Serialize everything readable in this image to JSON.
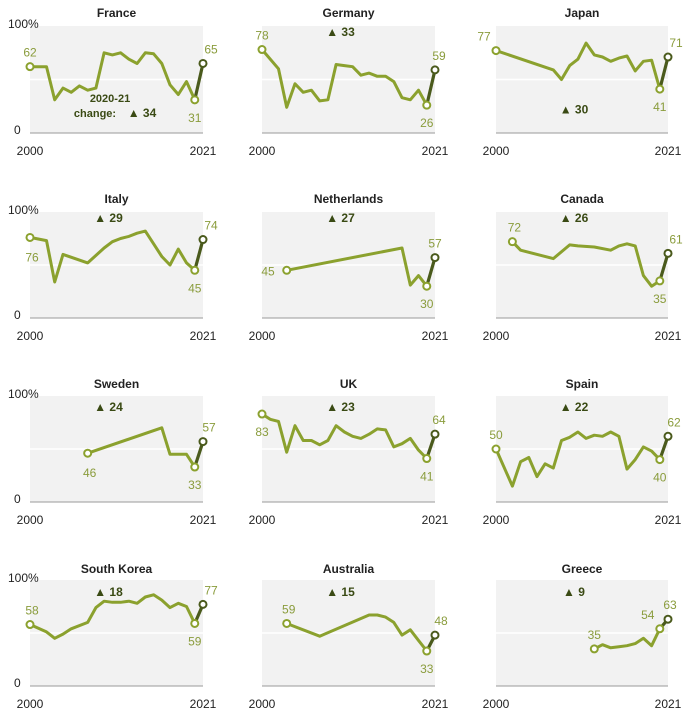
{
  "colors": {
    "line": "#8ba12e",
    "change_segment": "#4a5a1c",
    "panel_bg": "#f2f2f2",
    "axis": "#999999",
    "label": "#8a9c3c",
    "change_text": "#3a4a14"
  },
  "chart_data": [
    {
      "type": "line",
      "title": "France",
      "x": [
        2000,
        2002,
        2003,
        2004,
        2005,
        2006,
        2007,
        2008,
        2009,
        2010,
        2011,
        2012,
        2013,
        2014,
        2015,
        2016,
        2017,
        2018,
        2019,
        2020,
        2021
      ],
      "values": [
        62,
        62,
        31,
        42,
        38,
        44,
        40,
        42,
        75,
        73,
        75,
        69,
        65,
        75,
        74,
        65,
        45,
        36,
        48,
        31,
        65
      ],
      "start_label": "62",
      "end_label": "65",
      "low_label": "31",
      "change": "▲ 34",
      "change_note_line1": "2020-21",
      "change_note_line2": "change:",
      "x_start_label": "2000",
      "x_end_label": "2021",
      "y_top_label": "100%",
      "y_bottom_label": "0",
      "ylim": [
        0,
        100
      ]
    },
    {
      "type": "line",
      "title": "Germany",
      "x": [
        2000,
        2002,
        2003,
        2004,
        2005,
        2006,
        2007,
        2008,
        2009,
        2010,
        2011,
        2012,
        2013,
        2014,
        2015,
        2016,
        2017,
        2018,
        2019,
        2020,
        2021
      ],
      "values": [
        78,
        60,
        24,
        46,
        38,
        40,
        30,
        31,
        64,
        63,
        62,
        54,
        56,
        53,
        53,
        48,
        33,
        31,
        40,
        26,
        59
      ],
      "start_label": "78",
      "end_label": "59",
      "low_label": "26",
      "change": "▲ 33",
      "x_start_label": "2000",
      "x_end_label": "2021",
      "ylim": [
        0,
        100
      ]
    },
    {
      "type": "line",
      "title": "Japan",
      "x": [
        2000,
        2007,
        2008,
        2009,
        2010,
        2011,
        2012,
        2013,
        2014,
        2015,
        2016,
        2017,
        2018,
        2019,
        2020,
        2021
      ],
      "values": [
        77,
        59,
        50,
        63,
        69,
        84,
        73,
        71,
        67,
        70,
        72,
        58,
        67,
        68,
        41,
        71
      ],
      "start_label": "77",
      "end_label": "71",
      "low_label": "41",
      "change": "▲ 30",
      "x_start_label": "2000",
      "x_end_label": "2021",
      "ylim": [
        0,
        100
      ]
    },
    {
      "type": "line",
      "title": "Italy",
      "x": [
        2000,
        2002,
        2003,
        2004,
        2007,
        2009,
        2010,
        2011,
        2012,
        2013,
        2014,
        2015,
        2016,
        2017,
        2018,
        2019,
        2020,
        2021
      ],
      "values": [
        76,
        73,
        34,
        60,
        52,
        66,
        72,
        75,
        77,
        80,
        82,
        70,
        58,
        50,
        65,
        52,
        45,
        74
      ],
      "start_label": "76",
      "end_label": "74",
      "low_label": "45",
      "change": "▲ 29",
      "x_start_label": "2000",
      "x_end_label": "2021",
      "y_top_label": "100%",
      "y_bottom_label": "0",
      "ylim": [
        0,
        100
      ]
    },
    {
      "type": "line",
      "title": "Netherlands",
      "x": [
        2003,
        2017,
        2018,
        2019,
        2020,
        2021
      ],
      "values": [
        45,
        66,
        31,
        40,
        30,
        57
      ],
      "start_label": "45",
      "end_label": "57",
      "low_label": "30",
      "change": "▲ 27",
      "x_start_label": "2000",
      "x_end_label": "2021",
      "ylim": [
        0,
        100
      ]
    },
    {
      "type": "line",
      "title": "Canada",
      "x": [
        2002,
        2003,
        2007,
        2009,
        2010,
        2012,
        2014,
        2015,
        2016,
        2017,
        2018,
        2019,
        2020,
        2021
      ],
      "values": [
        72,
        64,
        56,
        69,
        68,
        67,
        64,
        68,
        70,
        68,
        40,
        30,
        35,
        61
      ],
      "start_label": "72",
      "end_label": "61",
      "low_label": "35",
      "change": "▲ 26",
      "x_start_label": "2000",
      "x_end_label": "2021",
      "ylim": [
        0,
        100
      ]
    },
    {
      "type": "line",
      "title": "Sweden",
      "x": [
        2007,
        2016,
        2017,
        2018,
        2019,
        2020,
        2021
      ],
      "values": [
        46,
        70,
        45,
        45,
        45,
        33,
        57
      ],
      "start_label": "46",
      "end_label": "57",
      "low_label": "33",
      "change": "▲ 24",
      "x_start_label": "2000",
      "x_end_label": "2021",
      "y_top_label": "100%",
      "y_bottom_label": "0",
      "ylim": [
        0,
        100
      ]
    },
    {
      "type": "line",
      "title": "UK",
      "x": [
        2000,
        2001,
        2002,
        2003,
        2004,
        2005,
        2006,
        2007,
        2008,
        2009,
        2010,
        2011,
        2012,
        2013,
        2014,
        2015,
        2016,
        2017,
        2018,
        2019,
        2020,
        2021
      ],
      "values": [
        83,
        78,
        76,
        47,
        72,
        58,
        58,
        54,
        58,
        72,
        66,
        62,
        60,
        64,
        69,
        68,
        52,
        55,
        60,
        49,
        41,
        64
      ],
      "start_label": "83",
      "end_label": "64",
      "low_label": "41",
      "change": "▲ 23",
      "x_start_label": "2000",
      "x_end_label": "2021",
      "ylim": [
        0,
        100
      ]
    },
    {
      "type": "line",
      "title": "Spain",
      "x": [
        2000,
        2002,
        2003,
        2004,
        2005,
        2006,
        2007,
        2008,
        2009,
        2010,
        2011,
        2012,
        2013,
        2014,
        2015,
        2016,
        2017,
        2018,
        2019,
        2020,
        2021
      ],
      "values": [
        50,
        15,
        38,
        42,
        24,
        36,
        32,
        58,
        61,
        66,
        60,
        63,
        62,
        66,
        62,
        31,
        40,
        52,
        48,
        40,
        62
      ],
      "start_label": "50",
      "end_label": "62",
      "low_label": "40",
      "change": "▲ 22",
      "x_start_label": "2000",
      "x_end_label": "2021",
      "ylim": [
        0,
        100
      ]
    },
    {
      "type": "line",
      "title": "South Korea",
      "x": [
        2000,
        2002,
        2003,
        2004,
        2005,
        2007,
        2008,
        2009,
        2010,
        2011,
        2012,
        2013,
        2014,
        2015,
        2016,
        2017,
        2018,
        2019,
        2020,
        2021
      ],
      "values": [
        58,
        51,
        45,
        49,
        54,
        60,
        74,
        80,
        79,
        79,
        80,
        78,
        84,
        86,
        81,
        74,
        78,
        75,
        59,
        77
      ],
      "start_label": "58",
      "end_label": "77",
      "low_label": "59",
      "change": "▲ 18",
      "x_start_label": "2000",
      "x_end_label": "2021",
      "y_top_label": "100%",
      "y_bottom_label": "0",
      "ylim": [
        0,
        100
      ]
    },
    {
      "type": "line",
      "title": "Australia",
      "x": [
        2003,
        2007,
        2013,
        2014,
        2015,
        2016,
        2017,
        2018,
        2019,
        2020,
        2021
      ],
      "values": [
        59,
        47,
        67,
        67,
        65,
        60,
        48,
        53,
        43,
        33,
        48
      ],
      "start_label": "59",
      "end_label": "48",
      "low_label": "33",
      "change": "▲ 15",
      "x_start_label": "2000",
      "x_end_label": "2021",
      "ylim": [
        0,
        100
      ]
    },
    {
      "type": "line",
      "title": "Greece",
      "x": [
        2012,
        2013,
        2014,
        2015,
        2016,
        2017,
        2018,
        2019,
        2020,
        2021
      ],
      "values": [
        35,
        39,
        36,
        37,
        38,
        40,
        45,
        38,
        54,
        63
      ],
      "start_label": "35",
      "end_label": "63",
      "mid_label": "54",
      "change": "▲ 9",
      "x_start_label": "2000",
      "x_end_label": "2021",
      "ylim": [
        0,
        100
      ]
    }
  ]
}
